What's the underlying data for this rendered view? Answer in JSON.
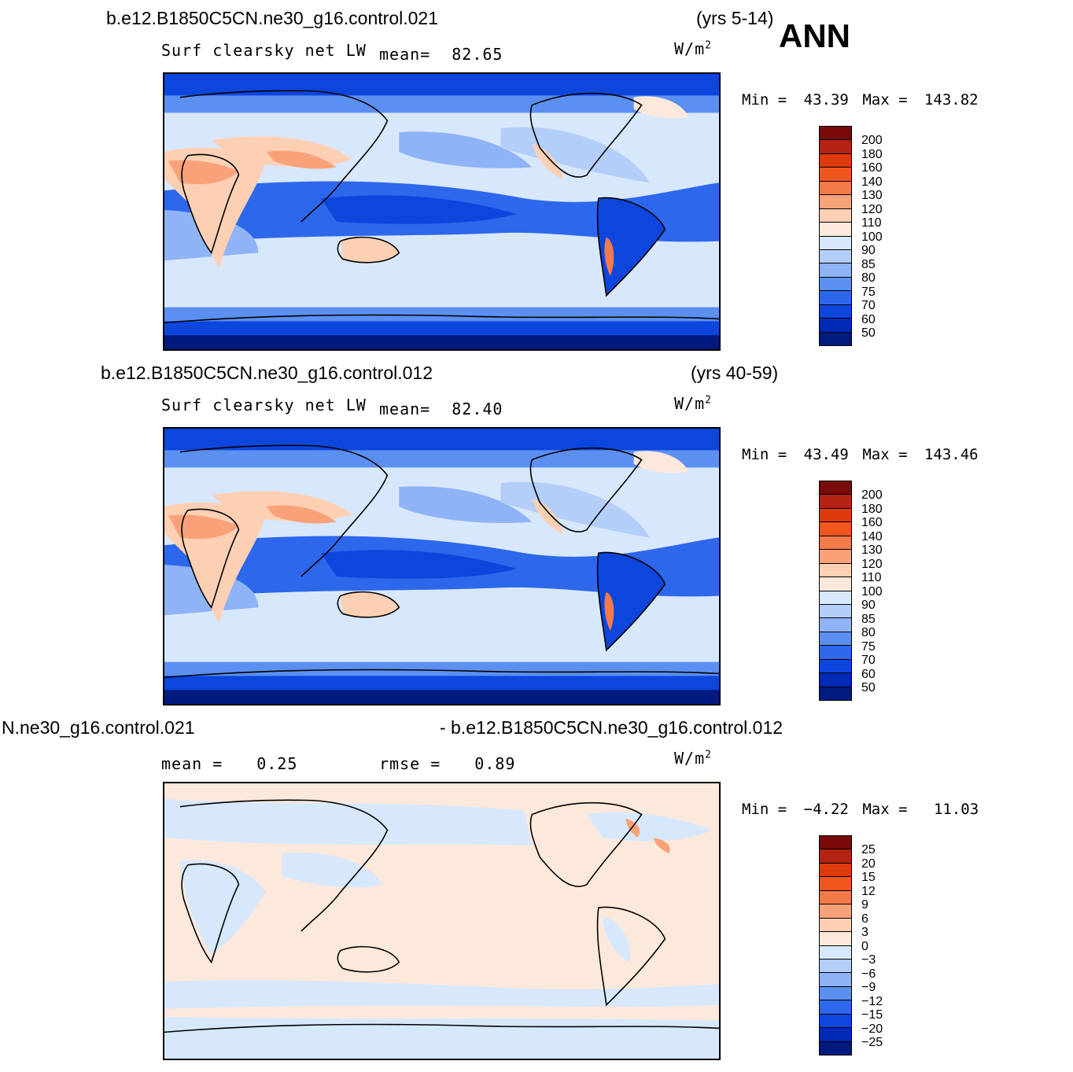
{
  "panels": [
    {
      "case": "b.e12.B1850C5CN.ne30_g16.control.021",
      "years": "(yrs 5-14)",
      "variable": "Surf clearsky net LW",
      "stat_label": "mean=",
      "stat_value": "82.65",
      "units_base": "W/m",
      "units_exp": "2",
      "min_label": "Min =",
      "min_value": "43.39",
      "max_label": "Max =",
      "max_value": "143.82",
      "colorbar_labels": [
        "200",
        "180",
        "160",
        "140",
        "130",
        "120",
        "110",
        "100",
        "90",
        "85",
        "80",
        "75",
        "70",
        "60",
        "50"
      ]
    },
    {
      "case": "b.e12.B1850C5CN.ne30_g16.control.012",
      "years": "(yrs 40-59)",
      "variable": "Surf clearsky net LW",
      "stat_label": "mean=",
      "stat_value": "82.40",
      "units_base": "W/m",
      "units_exp": "2",
      "min_label": "Min =",
      "min_value": "43.49",
      "max_label": "Max =",
      "max_value": "143.46",
      "colorbar_labels": [
        "200",
        "180",
        "160",
        "140",
        "130",
        "120",
        "110",
        "100",
        "90",
        "85",
        "80",
        "75",
        "70",
        "60",
        "50"
      ]
    },
    {
      "case_left": "N.ne30_g16.control.021",
      "case_right": "- b.e12.B1850C5CN.ne30_g16.control.012",
      "mean_label": "mean =",
      "mean_value": "0.25",
      "rmse_label": "rmse =",
      "rmse_value": "0.89",
      "units_base": "W/m",
      "units_exp": "2",
      "min_label": "Min =",
      "min_value": "−4.22",
      "max_label": "Max =",
      "max_value": "11.03",
      "colorbar_labels": [
        "25",
        "20",
        "15",
        "12",
        "9",
        "6",
        "3",
        "0",
        "−3",
        "−6",
        "−9",
        "−12",
        "−15",
        "−20",
        "−25"
      ]
    }
  ],
  "season": "ANN",
  "colors": {
    "abs_scale": [
      "#7a0a0a",
      "#b32212",
      "#de3a0e",
      "#f0561e",
      "#f57a4a",
      "#f9a27a",
      "#fdd0b4",
      "#fde9dc",
      "#d8e8fc",
      "#b4cefa",
      "#8fb3f7",
      "#5b90f2",
      "#2d67ec",
      "#0c46dd",
      "#0029b8",
      "#001a80"
    ],
    "diff_scale": [
      "#7a0a0a",
      "#b32212",
      "#de3a0e",
      "#f0561e",
      "#f57a4a",
      "#f9a27a",
      "#fdd0b4",
      "#fde9dc",
      "#d8e8fc",
      "#b4cefa",
      "#8fb3f7",
      "#5b90f2",
      "#2d67ec",
      "#0c46dd",
      "#0029b8",
      "#001a80"
    ]
  }
}
